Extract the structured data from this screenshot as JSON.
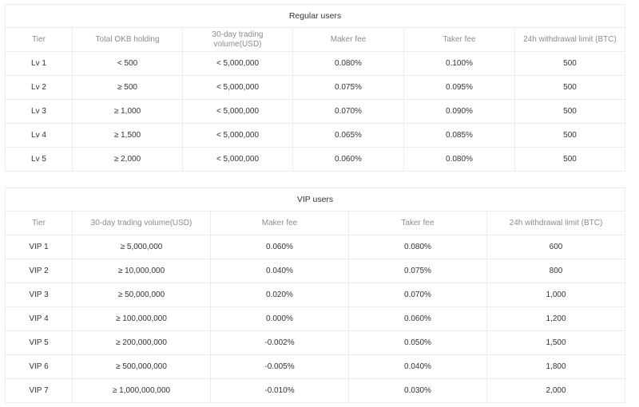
{
  "regular": {
    "title": "Regular users",
    "headers": [
      "Tier",
      "Total OKB holding",
      "30-day trading volume(USD)",
      "Maker fee",
      "Taker fee",
      "24h withdrawal limit (BTC)"
    ],
    "rows": [
      [
        "Lv 1",
        "< 500",
        "< 5,000,000",
        "0.080%",
        "0.100%",
        "500"
      ],
      [
        "Lv 2",
        "≥ 500",
        "< 5,000,000",
        "0.075%",
        "0.095%",
        "500"
      ],
      [
        "Lv 3",
        "≥ 1,000",
        "< 5,000,000",
        "0.070%",
        "0.090%",
        "500"
      ],
      [
        "Lv 4",
        "≥ 1,500",
        "< 5,000,000",
        "0.065%",
        "0.085%",
        "500"
      ],
      [
        "Lv 5",
        "≥ 2,000",
        "< 5,000,000",
        "0.060%",
        "0.080%",
        "500"
      ]
    ]
  },
  "vip": {
    "title": "VIP users",
    "headers": [
      "Tier",
      "30-day trading volume(USD)",
      "Maker fee",
      "Taker fee",
      "24h withdrawal limit (BTC)"
    ],
    "rows": [
      [
        "VIP 1",
        "≥ 5,000,000",
        "0.060%",
        "0.080%",
        "600"
      ],
      [
        "VIP 2",
        "≥ 10,000,000",
        "0.040%",
        "0.075%",
        "800"
      ],
      [
        "VIP 3",
        "≥ 50,000,000",
        "0.020%",
        "0.070%",
        "1,000"
      ],
      [
        "VIP 4",
        "≥ 100,000,000",
        "0.000%",
        "0.060%",
        "1,200"
      ],
      [
        "VIP 5",
        "≥ 200,000,000",
        "-0.002%",
        "0.050%",
        "1,500"
      ],
      [
        "VIP 6",
        "≥ 500,000,000",
        "-0.005%",
        "0.040%",
        "1,800"
      ],
      [
        "VIP 7",
        "≥ 1,000,000,000",
        "-0.010%",
        "0.030%",
        "2,000"
      ]
    ]
  }
}
